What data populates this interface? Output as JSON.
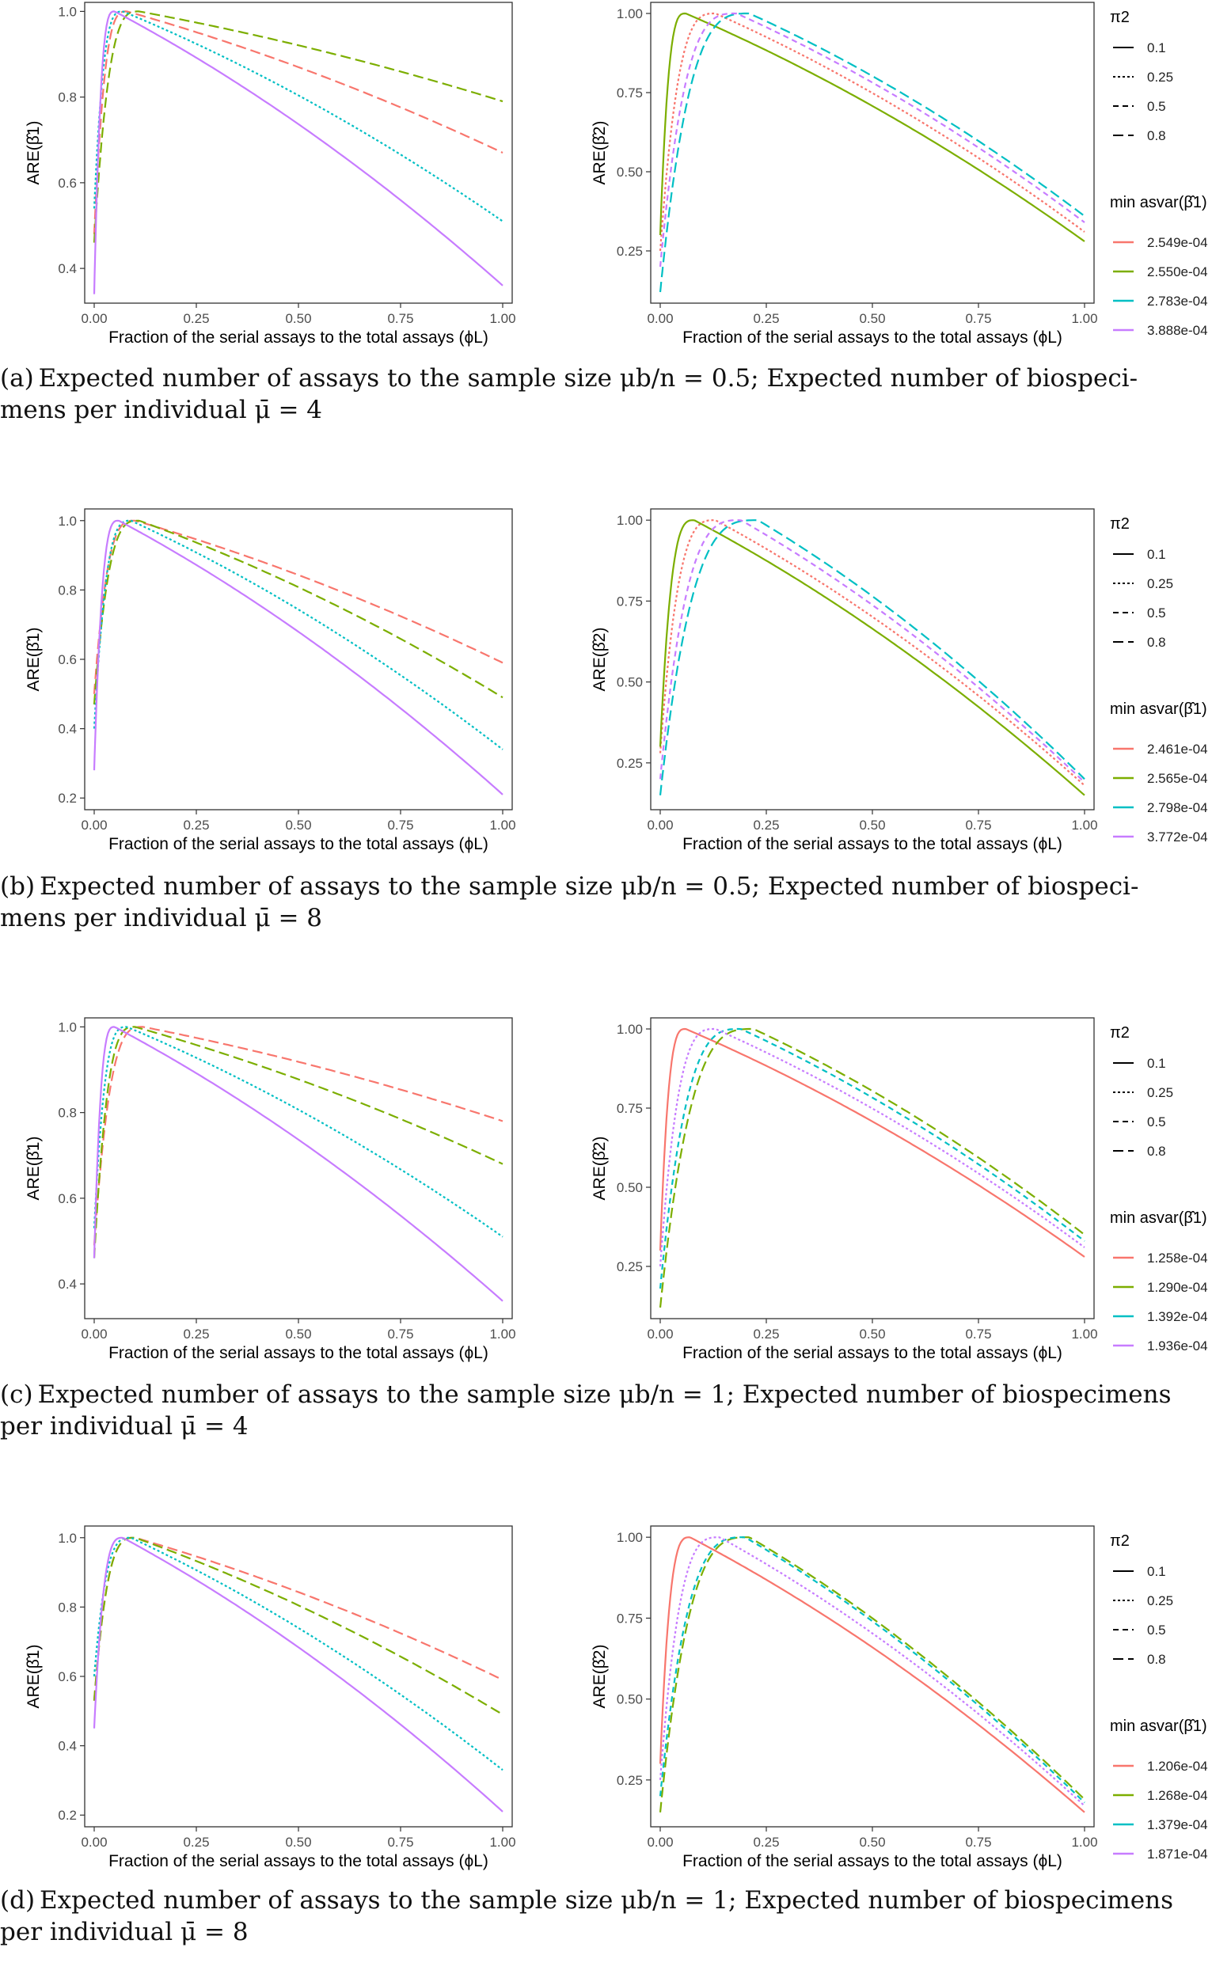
{
  "colors": {
    "red": "#F8766D",
    "green": "#7CAE00",
    "cyan": "#00BFC4",
    "purple": "#C77CFF",
    "axis": "#333333",
    "frame": "#333333"
  },
  "common": {
    "xlabel": "Fraction of the serial assays to the total assays (ϕL)",
    "xticks": [
      "0.00",
      "0.25",
      "0.50",
      "0.75",
      "1.00"
    ],
    "legend_title_linetype": "π2",
    "legend_title_color": "min asvar(β̂1)",
    "linetypes": [
      "0.1",
      "0.25",
      "0.5",
      "0.8"
    ]
  },
  "panels": [
    {
      "caption_label": "(a)",
      "caption_line1": "Expected number of assays to the sample size μb/n = 0.5; Expected number of biospeci-",
      "caption_line2": "mens per individual μ̄ = 4",
      "legend_colors": [
        {
          "label": "2.549e-04",
          "color": "#F8766D"
        },
        {
          "label": "2.550e-04",
          "color": "#7CAE00"
        },
        {
          "label": "2.783e-04",
          "color": "#00BFC4"
        },
        {
          "label": "3.888e-04",
          "color": "#C77CFF"
        }
      ]
    },
    {
      "caption_label": "(b)",
      "caption_line1": "Expected number of assays to the sample size μb/n = 0.5; Expected number of biospeci-",
      "caption_line2": "mens per individual μ̄ = 8",
      "legend_colors": [
        {
          "label": "2.461e-04",
          "color": "#F8766D"
        },
        {
          "label": "2.565e-04",
          "color": "#7CAE00"
        },
        {
          "label": "2.798e-04",
          "color": "#00BFC4"
        },
        {
          "label": "3.772e-04",
          "color": "#C77CFF"
        }
      ]
    },
    {
      "caption_label": "(c)",
      "caption_line1": "Expected number of assays to the sample size μb/n = 1; Expected number of biospecimens",
      "caption_line2": "per individual μ̄ = 4",
      "legend_colors": [
        {
          "label": "1.258e-04",
          "color": "#F8766D"
        },
        {
          "label": "1.290e-04",
          "color": "#7CAE00"
        },
        {
          "label": "1.392e-04",
          "color": "#00BFC4"
        },
        {
          "label": "1.936e-04",
          "color": "#C77CFF"
        }
      ]
    },
    {
      "caption_label": "(d)",
      "caption_line1": "Expected number of assays to the sample size μb/n = 1; Expected number of biospecimens",
      "caption_line2": "per individual μ̄ = 8",
      "legend_colors": [
        {
          "label": "1.206e-04",
          "color": "#F8766D"
        },
        {
          "label": "1.268e-04",
          "color": "#7CAE00"
        },
        {
          "label": "1.379e-04",
          "color": "#00BFC4"
        },
        {
          "label": "1.871e-04",
          "color": "#C77CFF"
        }
      ]
    }
  ],
  "chart_data": [
    {
      "panel": "a",
      "type": "line",
      "ylabel": "ARE(β̂1)",
      "xlim": [
        0,
        1
      ],
      "ylim": [
        0.33,
        1.01
      ],
      "yticks": [
        "0.4",
        "0.6",
        "0.8",
        "1.0"
      ],
      "ytick_values": [
        0.4,
        0.6,
        0.8,
        1.0
      ],
      "series": [
        {
          "color": "red",
          "dash": "longdash",
          "y0": 0.48,
          "peak_x": 0.08,
          "end": 0.67
        },
        {
          "color": "green",
          "dash": "longdash",
          "y0": 0.46,
          "peak_x": 0.11,
          "end": 0.79
        },
        {
          "color": "cyan",
          "dash": "dotted",
          "y0": 0.54,
          "peak_x": 0.07,
          "end": 0.51
        },
        {
          "color": "purple",
          "dash": "solid",
          "y0": 0.34,
          "peak_x": 0.05,
          "end": 0.36
        }
      ]
    },
    {
      "panel": "a",
      "type": "line",
      "ylabel": "ARE(β̂2)",
      "xlim": [
        0,
        1
      ],
      "ylim": [
        0.1,
        1.02
      ],
      "yticks": [
        "0.25",
        "0.50",
        "0.75",
        "1.00"
      ],
      "ytick_values": [
        0.25,
        0.5,
        0.75,
        1.0
      ],
      "series": [
        {
          "color": "red",
          "dash": "dotted",
          "y0": 0.25,
          "peak_x": 0.13,
          "end": 0.31
        },
        {
          "color": "green",
          "dash": "solid",
          "y0": 0.3,
          "peak_x": 0.06,
          "end": 0.28
        },
        {
          "color": "cyan",
          "dash": "longdash",
          "y0": 0.12,
          "peak_x": 0.21,
          "end": 0.36
        },
        {
          "color": "purple",
          "dash": "dashed",
          "y0": 0.2,
          "peak_x": 0.18,
          "end": 0.34
        }
      ]
    },
    {
      "panel": "b",
      "type": "line",
      "ylabel": "ARE(β̂1)",
      "xlim": [
        0,
        1
      ],
      "ylim": [
        0.18,
        1.02
      ],
      "yticks": [
        "0.2",
        "0.4",
        "0.6",
        "0.8",
        "1.0"
      ],
      "ytick_values": [
        0.2,
        0.4,
        0.6,
        0.8,
        1.0
      ],
      "series": [
        {
          "color": "red",
          "dash": "longdash",
          "y0": 0.5,
          "peak_x": 0.1,
          "end": 0.59
        },
        {
          "color": "green",
          "dash": "longdash",
          "y0": 0.47,
          "peak_x": 0.11,
          "end": 0.49
        },
        {
          "color": "cyan",
          "dash": "dotted",
          "y0": 0.4,
          "peak_x": 0.09,
          "end": 0.34
        },
        {
          "color": "purple",
          "dash": "solid",
          "y0": 0.28,
          "peak_x": 0.06,
          "end": 0.21
        }
      ]
    },
    {
      "panel": "b",
      "type": "line",
      "ylabel": "ARE(β̂2)",
      "xlim": [
        0,
        1
      ],
      "ylim": [
        0.12,
        1.02
      ],
      "yticks": [
        "0.25",
        "0.50",
        "0.75",
        "1.00"
      ],
      "ytick_values": [
        0.25,
        0.5,
        0.75,
        1.0
      ],
      "series": [
        {
          "color": "red",
          "dash": "dotted",
          "y0": 0.28,
          "peak_x": 0.13,
          "end": 0.18
        },
        {
          "color": "green",
          "dash": "solid",
          "y0": 0.3,
          "peak_x": 0.08,
          "end": 0.15
        },
        {
          "color": "cyan",
          "dash": "longdash",
          "y0": 0.15,
          "peak_x": 0.23,
          "end": 0.2
        },
        {
          "color": "purple",
          "dash": "dashed",
          "y0": 0.2,
          "peak_x": 0.19,
          "end": 0.19
        }
      ]
    },
    {
      "panel": "c",
      "type": "line",
      "ylabel": "ARE(β̂1)",
      "xlim": [
        0,
        1
      ],
      "ylim": [
        0.33,
        1.01
      ],
      "yticks": [
        "0.4",
        "0.6",
        "0.8",
        "1.0"
      ],
      "ytick_values": [
        0.4,
        0.6,
        0.8,
        1.0
      ],
      "series": [
        {
          "color": "red",
          "dash": "longdash",
          "y0": 0.49,
          "peak_x": 0.12,
          "end": 0.78
        },
        {
          "color": "green",
          "dash": "longdash",
          "y0": 0.46,
          "peak_x": 0.1,
          "end": 0.68
        },
        {
          "color": "cyan",
          "dash": "dotted",
          "y0": 0.53,
          "peak_x": 0.08,
          "end": 0.51
        },
        {
          "color": "purple",
          "dash": "solid",
          "y0": 0.46,
          "peak_x": 0.05,
          "end": 0.36
        }
      ]
    },
    {
      "panel": "c",
      "type": "line",
      "ylabel": "ARE(β̂2)",
      "xlim": [
        0,
        1
      ],
      "ylim": [
        0.1,
        1.02
      ],
      "yticks": [
        "0.25",
        "0.50",
        "0.75",
        "1.00"
      ],
      "ytick_values": [
        0.25,
        0.5,
        0.75,
        1.0
      ],
      "series": [
        {
          "color": "red",
          "dash": "solid",
          "y0": 0.3,
          "peak_x": 0.06,
          "end": 0.28
        },
        {
          "color": "green",
          "dash": "longdash",
          "y0": 0.12,
          "peak_x": 0.22,
          "end": 0.35
        },
        {
          "color": "cyan",
          "dash": "dashed",
          "y0": 0.18,
          "peak_x": 0.19,
          "end": 0.33
        },
        {
          "color": "purple",
          "dash": "dotted",
          "y0": 0.25,
          "peak_x": 0.13,
          "end": 0.31
        }
      ]
    },
    {
      "panel": "d",
      "type": "line",
      "ylabel": "ARE(β̂1)",
      "xlim": [
        0,
        1
      ],
      "ylim": [
        0.18,
        1.02
      ],
      "yticks": [
        "0.2",
        "0.4",
        "0.6",
        "0.8",
        "1.0"
      ],
      "ytick_values": [
        0.2,
        0.4,
        0.6,
        0.8,
        1.0
      ],
      "series": [
        {
          "color": "red",
          "dash": "longdash",
          "y0": 0.53,
          "peak_x": 0.1,
          "end": 0.59
        },
        {
          "color": "green",
          "dash": "longdash",
          "y0": 0.53,
          "peak_x": 0.1,
          "end": 0.49
        },
        {
          "color": "cyan",
          "dash": "dotted",
          "y0": 0.6,
          "peak_x": 0.09,
          "end": 0.33
        },
        {
          "color": "purple",
          "dash": "solid",
          "y0": 0.45,
          "peak_x": 0.07,
          "end": 0.21
        }
      ]
    },
    {
      "panel": "d",
      "type": "line",
      "ylabel": "ARE(β̂2)",
      "xlim": [
        0,
        1
      ],
      "ylim": [
        0.12,
        1.02
      ],
      "yticks": [
        "0.25",
        "0.50",
        "0.75",
        "1.00"
      ],
      "ytick_values": [
        0.25,
        0.5,
        0.75,
        1.0
      ],
      "series": [
        {
          "color": "red",
          "dash": "solid",
          "y0": 0.3,
          "peak_x": 0.07,
          "end": 0.15
        },
        {
          "color": "green",
          "dash": "longdash",
          "y0": 0.15,
          "peak_x": 0.21,
          "end": 0.19
        },
        {
          "color": "cyan",
          "dash": "dashed",
          "y0": 0.2,
          "peak_x": 0.2,
          "end": 0.18
        },
        {
          "color": "purple",
          "dash": "dotted",
          "y0": 0.25,
          "peak_x": 0.14,
          "end": 0.17
        }
      ]
    }
  ]
}
